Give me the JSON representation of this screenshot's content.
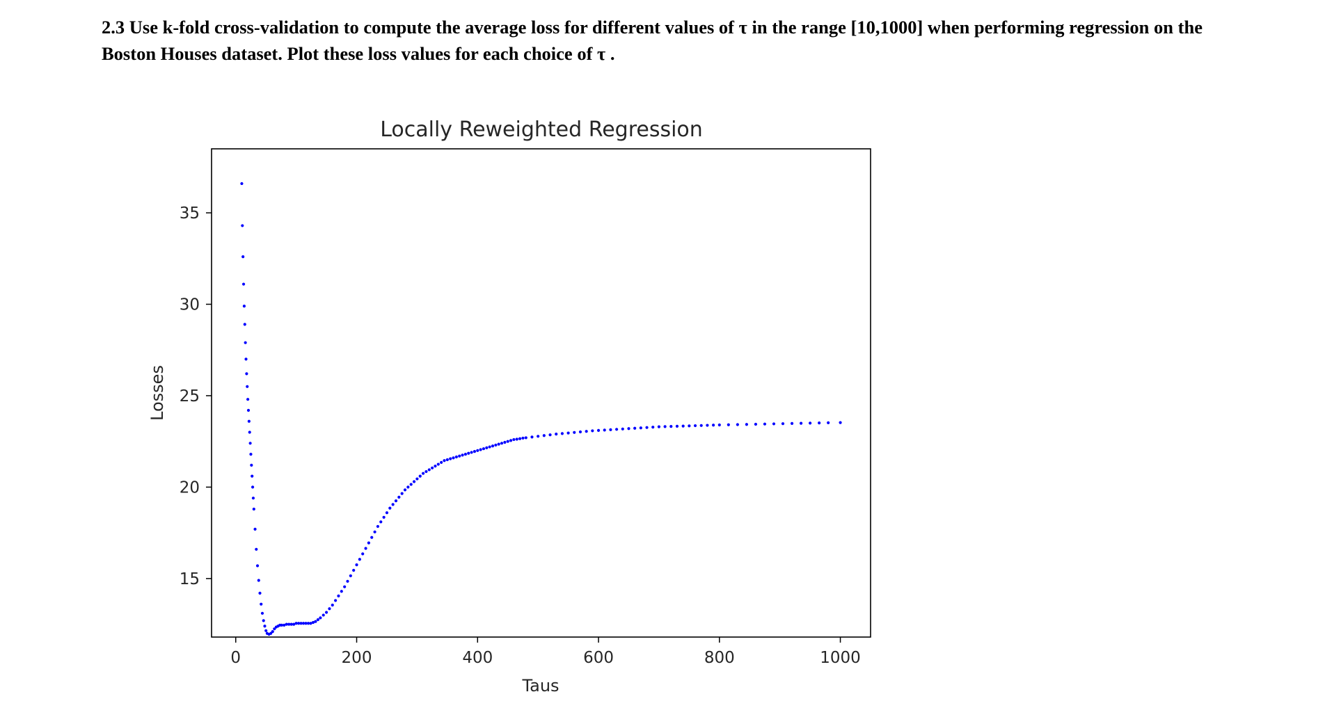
{
  "question": {
    "text": "2.3 Use k-fold cross-validation to compute the average loss for different values of τ in the range [10,1000] when performing regression on the Boston Houses dataset. Plot these loss values for each choice of τ ."
  },
  "chart_data": {
    "type": "scatter",
    "title": "Locally Reweighted Regression",
    "xlabel": "Taus",
    "ylabel": "Losses",
    "xlim": [
      -40,
      1050
    ],
    "ylim": [
      11.8,
      38.5
    ],
    "xticks": [
      0,
      200,
      400,
      600,
      800,
      1000
    ],
    "yticks": [
      15,
      20,
      25,
      30,
      35
    ],
    "grid": false,
    "marker_color": "#0000ff",
    "series": [
      {
        "x": [
          10,
          11,
          12,
          13,
          14,
          15,
          16,
          17,
          18,
          19,
          20,
          21,
          22,
          23,
          24,
          25,
          26,
          27,
          28,
          29,
          30,
          32,
          34,
          36,
          38,
          40,
          42,
          44,
          46,
          48,
          50,
          52,
          55,
          58,
          61,
          64,
          67,
          70,
          73,
          76,
          80,
          84,
          88,
          92,
          96,
          100,
          104,
          108,
          112,
          116,
          120,
          124,
          128,
          132,
          136,
          140,
          145,
          150,
          155,
          160,
          165,
          170,
          175,
          180,
          185,
          190,
          195,
          200,
          205,
          210,
          215,
          220,
          225,
          230,
          235,
          240,
          245,
          250,
          255,
          260,
          265,
          270,
          275,
          280,
          285,
          290,
          295,
          300,
          305,
          310,
          315,
          320,
          325,
          330,
          335,
          340,
          345,
          350,
          355,
          360,
          365,
          370,
          375,
          380,
          385,
          390,
          395,
          400,
          405,
          410,
          415,
          420,
          425,
          430,
          435,
          440,
          445,
          450,
          455,
          460,
          465,
          470,
          475,
          480,
          490,
          500,
          510,
          520,
          530,
          540,
          550,
          560,
          570,
          580,
          590,
          600,
          610,
          620,
          630,
          640,
          650,
          660,
          670,
          680,
          690,
          700,
          710,
          720,
          730,
          740,
          750,
          760,
          770,
          780,
          790,
          800,
          815,
          830,
          845,
          860,
          875,
          890,
          905,
          920,
          935,
          950,
          965,
          980,
          1000
        ],
        "y": [
          36.6,
          34.3,
          32.6,
          31.1,
          29.9,
          28.9,
          27.9,
          27.0,
          26.2,
          25.5,
          24.8,
          24.2,
          23.6,
          23.0,
          22.4,
          21.8,
          21.2,
          20.6,
          20.0,
          19.4,
          18.8,
          17.7,
          16.6,
          15.7,
          14.9,
          14.2,
          13.6,
          13.1,
          12.7,
          12.4,
          12.15,
          12.0,
          11.95,
          12.0,
          12.1,
          12.25,
          12.35,
          12.4,
          12.45,
          12.45,
          12.45,
          12.5,
          12.5,
          12.5,
          12.5,
          12.55,
          12.55,
          12.55,
          12.55,
          12.55,
          12.55,
          12.55,
          12.6,
          12.65,
          12.75,
          12.85,
          13.0,
          13.15,
          13.35,
          13.55,
          13.8,
          14.05,
          14.3,
          14.55,
          14.85,
          15.15,
          15.45,
          15.75,
          16.05,
          16.35,
          16.65,
          16.95,
          17.25,
          17.55,
          17.85,
          18.1,
          18.35,
          18.6,
          18.85,
          19.05,
          19.25,
          19.45,
          19.65,
          19.85,
          20.0,
          20.15,
          20.3,
          20.45,
          20.6,
          20.75,
          20.85,
          20.95,
          21.05,
          21.15,
          21.25,
          21.35,
          21.45,
          21.5,
          21.55,
          21.6,
          21.65,
          21.7,
          21.75,
          21.8,
          21.85,
          21.9,
          21.95,
          22.0,
          22.05,
          22.1,
          22.15,
          22.2,
          22.25,
          22.3,
          22.35,
          22.4,
          22.45,
          22.5,
          22.55,
          22.6,
          22.62,
          22.65,
          22.68,
          22.7,
          22.74,
          22.78,
          22.82,
          22.86,
          22.9,
          22.93,
          22.96,
          22.99,
          23.02,
          23.05,
          23.08,
          23.1,
          23.12,
          23.14,
          23.16,
          23.18,
          23.2,
          23.22,
          23.24,
          23.26,
          23.28,
          23.3,
          23.31,
          23.32,
          23.33,
          23.34,
          23.35,
          23.36,
          23.37,
          23.38,
          23.39,
          23.4,
          23.41,
          23.42,
          23.43,
          23.44,
          23.45,
          23.46,
          23.47,
          23.48,
          23.49,
          23.5,
          23.51,
          23.52,
          23.53
        ]
      }
    ]
  }
}
